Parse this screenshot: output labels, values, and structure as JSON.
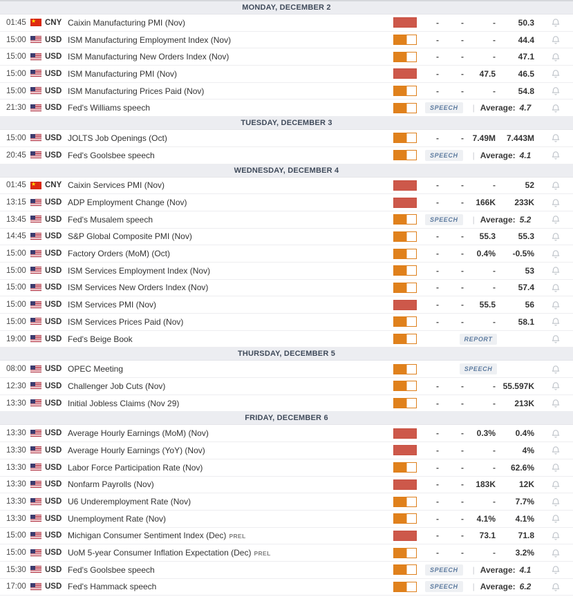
{
  "colors": {
    "volatility_high": "#cd584a",
    "volatility_medium": "#e0811c",
    "badge_text": "#5e7ca0",
    "header_bg": "#ecedf1"
  },
  "labels": {
    "average": "Average:",
    "separator": "|"
  },
  "sections": [
    {
      "title": "MONDAY, DECEMBER 2",
      "rows": [
        {
          "time": "01:45",
          "country": "cn",
          "currency": "CNY",
          "event": "Caixin Manufacturing PMI (Nov)",
          "volatility": "high",
          "actual": "-",
          "deviation": "-",
          "consensus": "-",
          "previous": "50.3"
        },
        {
          "time": "15:00",
          "country": "us",
          "currency": "USD",
          "event": "ISM Manufacturing Employment Index (Nov)",
          "volatility": "medium",
          "actual": "-",
          "deviation": "-",
          "consensus": "-",
          "previous": "44.4"
        },
        {
          "time": "15:00",
          "country": "us",
          "currency": "USD",
          "event": "ISM Manufacturing New Orders Index (Nov)",
          "volatility": "medium",
          "actual": "-",
          "deviation": "-",
          "consensus": "-",
          "previous": "47.1"
        },
        {
          "time": "15:00",
          "country": "us",
          "currency": "USD",
          "event": "ISM Manufacturing PMI (Nov)",
          "volatility": "high",
          "actual": "-",
          "deviation": "-",
          "consensus": "47.5",
          "previous": "46.5"
        },
        {
          "time": "15:00",
          "country": "us",
          "currency": "USD",
          "event": "ISM Manufacturing Prices Paid (Nov)",
          "volatility": "medium",
          "actual": "-",
          "deviation": "-",
          "consensus": "-",
          "previous": "54.8"
        },
        {
          "time": "21:30",
          "country": "us",
          "currency": "USD",
          "event": "Fed's Williams speech",
          "volatility": "medium",
          "badge": "SPEECH",
          "average": "4.7"
        }
      ]
    },
    {
      "title": "TUESDAY, DECEMBER 3",
      "rows": [
        {
          "time": "15:00",
          "country": "us",
          "currency": "USD",
          "event": "JOLTS Job Openings (Oct)",
          "volatility": "medium",
          "actual": "-",
          "deviation": "-",
          "consensus": "7.49M",
          "previous": "7.443M"
        },
        {
          "time": "20:45",
          "country": "us",
          "currency": "USD",
          "event": "Fed's Goolsbee speech",
          "volatility": "medium",
          "badge": "SPEECH",
          "average": "4.1"
        }
      ]
    },
    {
      "title": "WEDNESDAY, DECEMBER 4",
      "rows": [
        {
          "time": "01:45",
          "country": "cn",
          "currency": "CNY",
          "event": "Caixin Services PMI (Nov)",
          "volatility": "high",
          "actual": "-",
          "deviation": "-",
          "consensus": "-",
          "previous": "52"
        },
        {
          "time": "13:15",
          "country": "us",
          "currency": "USD",
          "event": "ADP Employment Change (Nov)",
          "volatility": "high",
          "actual": "-",
          "deviation": "-",
          "consensus": "166K",
          "previous": "233K"
        },
        {
          "time": "13:45",
          "country": "us",
          "currency": "USD",
          "event": "Fed's Musalem speech",
          "volatility": "medium",
          "badge": "SPEECH",
          "average": "5.2"
        },
        {
          "time": "14:45",
          "country": "us",
          "currency": "USD",
          "event": "S&P Global Composite PMI (Nov)",
          "volatility": "medium",
          "actual": "-",
          "deviation": "-",
          "consensus": "55.3",
          "previous": "55.3"
        },
        {
          "time": "15:00",
          "country": "us",
          "currency": "USD",
          "event": "Factory Orders (MoM) (Oct)",
          "volatility": "medium",
          "actual": "-",
          "deviation": "-",
          "consensus": "0.4%",
          "previous": "-0.5%"
        },
        {
          "time": "15:00",
          "country": "us",
          "currency": "USD",
          "event": "ISM Services Employment Index (Nov)",
          "volatility": "medium",
          "actual": "-",
          "deviation": "-",
          "consensus": "-",
          "previous": "53"
        },
        {
          "time": "15:00",
          "country": "us",
          "currency": "USD",
          "event": "ISM Services New Orders Index (Nov)",
          "volatility": "medium",
          "actual": "-",
          "deviation": "-",
          "consensus": "-",
          "previous": "57.4"
        },
        {
          "time": "15:00",
          "country": "us",
          "currency": "USD",
          "event": "ISM Services PMI (Nov)",
          "volatility": "high",
          "actual": "-",
          "deviation": "-",
          "consensus": "55.5",
          "previous": "56"
        },
        {
          "time": "15:00",
          "country": "us",
          "currency": "USD",
          "event": "ISM Services Prices Paid (Nov)",
          "volatility": "medium",
          "actual": "-",
          "deviation": "-",
          "consensus": "-",
          "previous": "58.1"
        },
        {
          "time": "19:00",
          "country": "us",
          "currency": "USD",
          "event": "Fed's Beige Book",
          "volatility": "medium",
          "badge": "REPORT"
        }
      ]
    },
    {
      "title": "THURSDAY, DECEMBER 5",
      "rows": [
        {
          "time": "08:00",
          "country": "us",
          "currency": "USD",
          "event": "OPEC Meeting",
          "volatility": "medium",
          "badge": "SPEECH"
        },
        {
          "time": "12:30",
          "country": "us",
          "currency": "USD",
          "event": "Challenger Job Cuts (Nov)",
          "volatility": "medium",
          "actual": "-",
          "deviation": "-",
          "consensus": "-",
          "previous": "55.597K"
        },
        {
          "time": "13:30",
          "country": "us",
          "currency": "USD",
          "event": "Initial Jobless Claims (Nov 29)",
          "volatility": "medium",
          "actual": "-",
          "deviation": "-",
          "consensus": "-",
          "previous": "213K"
        }
      ]
    },
    {
      "title": "FRIDAY, DECEMBER 6",
      "rows": [
        {
          "time": "13:30",
          "country": "us",
          "currency": "USD",
          "event": "Average Hourly Earnings (MoM) (Nov)",
          "volatility": "high",
          "actual": "-",
          "deviation": "-",
          "consensus": "0.3%",
          "previous": "0.4%"
        },
        {
          "time": "13:30",
          "country": "us",
          "currency": "USD",
          "event": "Average Hourly Earnings (YoY) (Nov)",
          "volatility": "high",
          "actual": "-",
          "deviation": "-",
          "consensus": "-",
          "previous": "4%"
        },
        {
          "time": "13:30",
          "country": "us",
          "currency": "USD",
          "event": "Labor Force Participation Rate (Nov)",
          "volatility": "medium",
          "actual": "-",
          "deviation": "-",
          "consensus": "-",
          "previous": "62.6%"
        },
        {
          "time": "13:30",
          "country": "us",
          "currency": "USD",
          "event": "Nonfarm Payrolls (Nov)",
          "volatility": "high",
          "actual": "-",
          "deviation": "-",
          "consensus": "183K",
          "previous": "12K"
        },
        {
          "time": "13:30",
          "country": "us",
          "currency": "USD",
          "event": "U6 Underemployment Rate (Nov)",
          "volatility": "medium",
          "actual": "-",
          "deviation": "-",
          "consensus": "-",
          "previous": "7.7%"
        },
        {
          "time": "13:30",
          "country": "us",
          "currency": "USD",
          "event": "Unemployment Rate (Nov)",
          "volatility": "medium",
          "actual": "-",
          "deviation": "-",
          "consensus": "4.1%",
          "previous": "4.1%"
        },
        {
          "time": "15:00",
          "country": "us",
          "currency": "USD",
          "event": "Michigan Consumer Sentiment Index (Dec)",
          "suffix": "PREL",
          "volatility": "high",
          "actual": "-",
          "deviation": "-",
          "consensus": "73.1",
          "previous": "71.8"
        },
        {
          "time": "15:00",
          "country": "us",
          "currency": "USD",
          "event": "UoM 5-year Consumer Inflation Expectation (Dec)",
          "suffix": "PREL",
          "volatility": "medium",
          "actual": "-",
          "deviation": "-",
          "consensus": "-",
          "previous": "3.2%"
        },
        {
          "time": "15:30",
          "country": "us",
          "currency": "USD",
          "event": "Fed's Goolsbee speech",
          "volatility": "medium",
          "badge": "SPEECH",
          "average": "4.1"
        },
        {
          "time": "17:00",
          "country": "us",
          "currency": "USD",
          "event": "Fed's Hammack speech",
          "volatility": "medium",
          "badge": "SPEECH",
          "average": "6.2"
        }
      ]
    }
  ]
}
